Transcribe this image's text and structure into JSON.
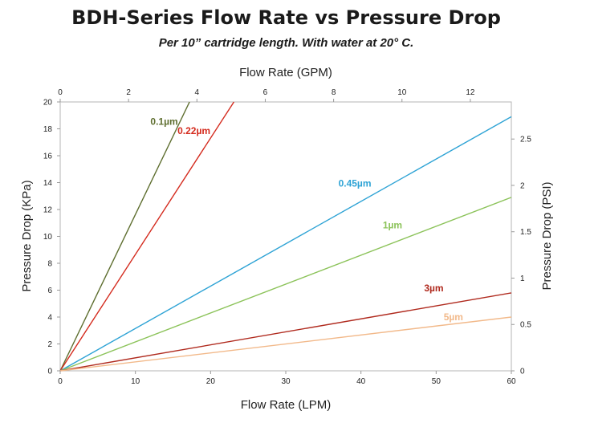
{
  "chart_data": {
    "type": "line",
    "title": "BDH-Series Flow Rate vs Pressure Drop",
    "subtitle": "Per 10” cartridge length. With water at 20° C.",
    "xlabel_bottom": "Flow Rate (LPM)",
    "xlabel_top": "Flow Rate (GPM)",
    "ylabel_left": "Pressure Drop (KPa)",
    "ylabel_right": "Pressure Drop (PSI)",
    "xlim_bottom": [
      0,
      60
    ],
    "xlim_top": [
      0,
      13.2
    ],
    "ylim_left": [
      0,
      20
    ],
    "ylim_right": [
      0,
      2.9
    ],
    "xticks_bottom": [
      "0",
      "10",
      "20",
      "30",
      "40",
      "50",
      "60"
    ],
    "xticks_top": [
      "0",
      "2",
      "4",
      "6",
      "8",
      "10",
      "12"
    ],
    "yticks_left": [
      "0",
      "2",
      "4",
      "6",
      "8",
      "10",
      "12",
      "14",
      "16",
      "18",
      "20"
    ],
    "yticks_right": [
      "0",
      "0.5",
      "1",
      "1.5",
      "2",
      "2.5"
    ],
    "grid": false,
    "series": [
      {
        "name": "0.1µm",
        "color": "#5e6e2f",
        "x": [
          0,
          17.2
        ],
        "y": [
          0,
          20
        ]
      },
      {
        "name": "0.22µm",
        "color": "#d42b1e",
        "x": [
          0,
          23.1
        ],
        "y": [
          0,
          20
        ]
      },
      {
        "name": "0.45µm",
        "color": "#2ea3d5",
        "x": [
          0,
          60
        ],
        "y": [
          0,
          18.9
        ]
      },
      {
        "name": "1µm",
        "color": "#8cc35a",
        "x": [
          0,
          60
        ],
        "y": [
          0,
          12.9
        ]
      },
      {
        "name": "3µm",
        "color": "#b02a1e",
        "x": [
          0,
          60
        ],
        "y": [
          0,
          5.8
        ]
      },
      {
        "name": "5µm",
        "color": "#f2b98a",
        "x": [
          0,
          60
        ],
        "y": [
          0,
          4.0
        ]
      }
    ]
  }
}
